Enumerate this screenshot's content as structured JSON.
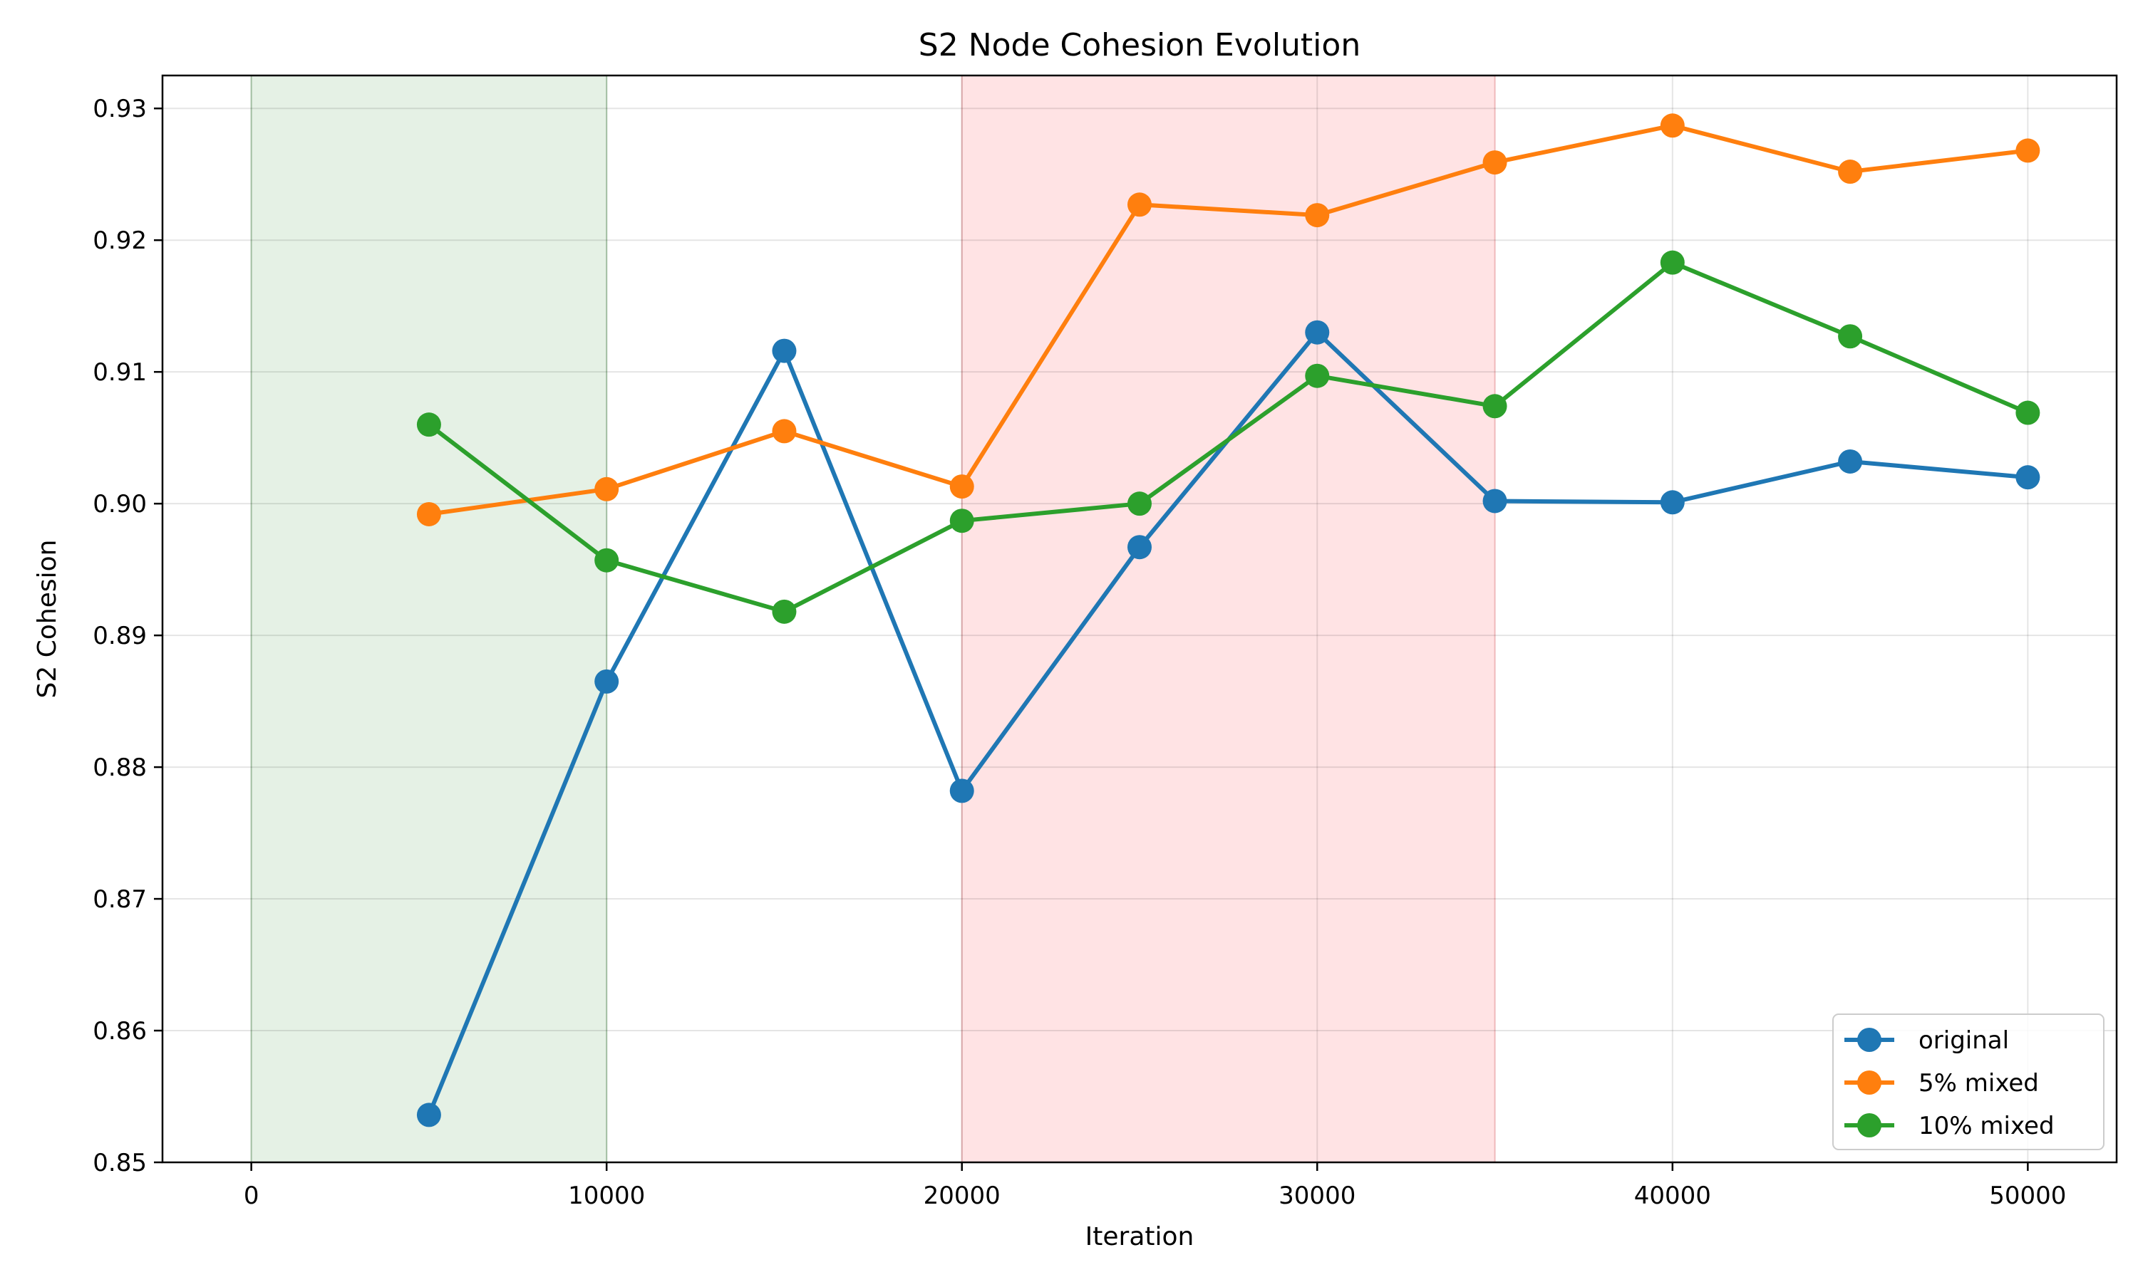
{
  "chart_data": {
    "type": "line",
    "title": "S2 Node Cohesion Evolution",
    "xlabel": "Iteration",
    "ylabel": "S2 Cohesion",
    "x": [
      5000,
      10000,
      15000,
      20000,
      25000,
      30000,
      35000,
      40000,
      45000,
      50000
    ],
    "xlim": [
      -2500,
      52500
    ],
    "ylim": [
      0.85,
      0.9325
    ],
    "xticks": [
      0,
      10000,
      20000,
      30000,
      40000,
      50000
    ],
    "yticks": [
      0.85,
      0.86,
      0.87,
      0.88,
      0.89,
      0.9,
      0.91,
      0.92,
      0.93
    ],
    "grid": true,
    "legend_position": "lower-right",
    "shaded_regions": [
      {
        "x_start": 0,
        "x_end": 10000,
        "color": "#e5f1e5"
      },
      {
        "x_start": 20000,
        "x_end": 35000,
        "color": "#ffe3e4"
      }
    ],
    "series": [
      {
        "name": "original",
        "color": "#1f77b4",
        "values": [
          0.8536,
          0.8865,
          0.9116,
          0.8782,
          0.8967,
          0.913,
          0.9002,
          0.9001,
          0.9032,
          0.902
        ]
      },
      {
        "name": "5% mixed",
        "color": "#ff7f0e",
        "values": [
          0.8992,
          0.9011,
          0.9055,
          0.9013,
          0.9227,
          0.9219,
          0.9259,
          0.9287,
          0.9252,
          0.9268
        ]
      },
      {
        "name": "10% mixed",
        "color": "#2ca02c",
        "values": [
          0.906,
          0.8957,
          0.8918,
          0.8987,
          0.9,
          0.9097,
          0.9074,
          0.9183,
          0.9127,
          0.9069
        ]
      }
    ]
  }
}
